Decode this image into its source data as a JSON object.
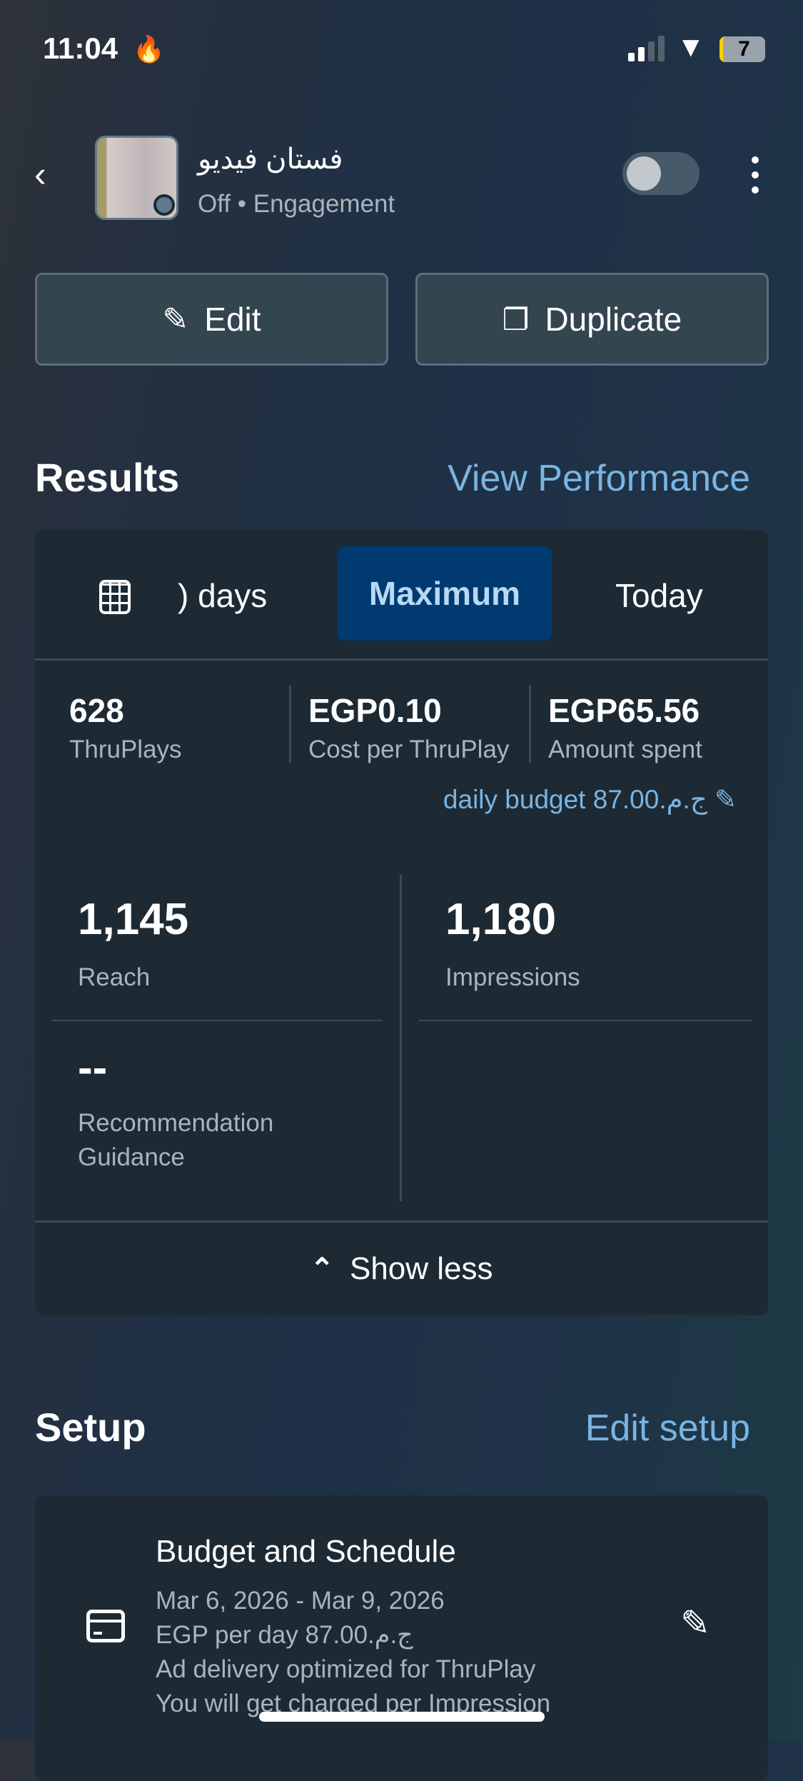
{
  "status_bar": {
    "time": "11:04",
    "battery": "7"
  },
  "header": {
    "title": "فستان فيديو",
    "subtitle": "Off • Engagement",
    "toggle_on": false
  },
  "actions": {
    "edit": "Edit",
    "duplicate": "Duplicate"
  },
  "results": {
    "title": "Results",
    "view_performance": "View Performance",
    "tabs": [
      {
        "label": ") days"
      },
      {
        "label": "Maximum",
        "selected": true
      },
      {
        "label": "Today"
      }
    ],
    "stats": [
      {
        "value": "628",
        "label": "ThruPlays"
      },
      {
        "value": "EGP0.10",
        "label": "Cost per ThruPlay"
      },
      {
        "value": "EGP65.56",
        "label": "Amount spent"
      }
    ],
    "daily_budget": "daily budget 87.00.ج.م",
    "metrics": {
      "reach": {
        "value": "1,145",
        "label": "Reach"
      },
      "impressions": {
        "value": "1,180",
        "label": "Impressions"
      },
      "recommendation": {
        "value": "--",
        "label": "Recommendation Guidance"
      }
    },
    "show_less": "Show less"
  },
  "setup": {
    "title": "Setup",
    "edit_setup": "Edit setup",
    "budget": {
      "title": "Budget and Schedule",
      "lines": [
        "Mar 6, 2026 - Mar 9, 2026",
        "EGP per day 87.00.ج.م",
        "Ad delivery optimized for ThruPlay",
        "You will get charged per Impression"
      ]
    }
  },
  "colors": {
    "accent": "#7ab4e2",
    "selected_tab": "#003a70",
    "card": "#1e2a33"
  }
}
